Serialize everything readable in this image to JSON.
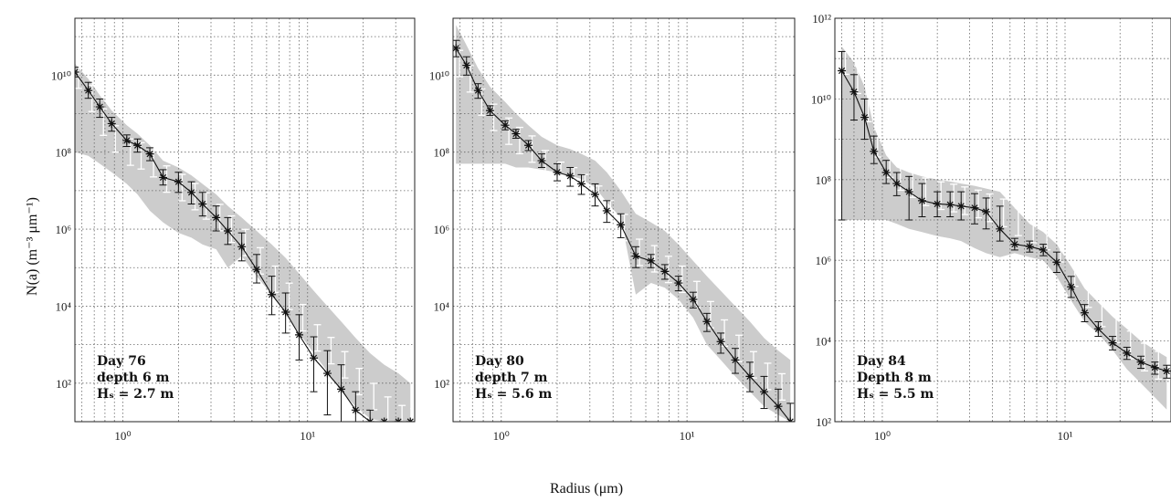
{
  "figure": {
    "ylabel": "N(a) (m⁻³ μm⁻¹)",
    "xlabel": "Radius (μm)"
  },
  "chart_data": [
    {
      "type": "line",
      "scale": "log-log",
      "grid": true,
      "xlim": [
        0.55,
        38
      ],
      "ylim": [
        10,
        300000000000.0
      ],
      "xticks": [
        "10⁰",
        "10¹"
      ],
      "yticks": [
        "10²",
        "10⁴",
        "10⁶",
        "10⁸",
        "10¹⁰"
      ],
      "annotation": [
        "Day 76",
        "depth 6 m",
        "Hₛ = 2.7 m"
      ],
      "series": {
        "x": [
          0.55,
          0.65,
          0.75,
          0.87,
          1.05,
          1.2,
          1.4,
          1.65,
          2.0,
          2.35,
          2.7,
          3.2,
          3.7,
          4.4,
          5.3,
          6.4,
          7.6,
          9.0,
          10.8,
          12.8,
          15.2,
          18.2,
          21.8,
          26.0,
          31.0,
          36.0
        ],
        "y": [
          12000000000.0,
          4000000000.0,
          1500000000.0,
          550000000.0,
          200000000.0,
          150000000.0,
          90000000.0,
          22000000.0,
          17000000.0,
          9000000.0,
          4500000.0,
          2000000.0,
          900000.0,
          350000.0,
          90000.0,
          20000.0,
          7000.0,
          1800.0,
          450.0,
          180.0,
          70,
          20,
          10,
          5,
          2.8,
          2
        ],
        "err_low": [
          9000000000.0,
          2500000000.0,
          800000000.0,
          350000000.0,
          140000000.0,
          100000000.0,
          60000000.0,
          14000000.0,
          9000000.0,
          4500000.0,
          2200000.0,
          900000.0,
          400000.0,
          150000.0,
          40000.0,
          6000.0,
          2000.0,
          400.0,
          60,
          15,
          1,
          5,
          3,
          2,
          1.8,
          1.5
        ],
        "err_high": [
          16000000000.0,
          6500000000.0,
          2400000000.0,
          800000000.0,
          280000000.0,
          220000000.0,
          130000000.0,
          35000000.0,
          30000000.0,
          17000000.0,
          9000000.0,
          4000000.0,
          2000000.0,
          800000.0,
          220000.0,
          60000.0,
          22000.0,
          6000.0,
          1600.0,
          700.0,
          300.0,
          60,
          20,
          10,
          6,
          4
        ],
        "secondary": [
          10000000000.0,
          2500000000.0,
          600000000.0,
          220000000.0,
          100000000.0,
          80000000.0,
          50000000.0,
          20000000.0,
          12000000.0,
          7000000.0,
          4000000.0,
          2000000.0,
          1000000.0,
          450000.0,
          150000.0,
          50000.0,
          18000.0,
          5000.0,
          1500.0,
          700,
          300,
          110,
          45,
          20,
          12,
          10
        ]
      },
      "band": {
        "lower": [
          100000000.0,
          80000000.0,
          50000000.0,
          30000000.0,
          15000000.0,
          8000000.0,
          3000000.0,
          1500000.0,
          800000.0,
          600000.0,
          400000.0,
          300000.0,
          100000.0,
          200000.0,
          60000.0,
          20000.0,
          7000.0,
          2000.0,
          600.0,
          200.0,
          60,
          25,
          12,
          8,
          5,
          2.5
        ],
        "upper": [
          20000000000.0,
          8000000000.0,
          3000000000.0,
          1200000000.0,
          500000000.0,
          300000000.0,
          150000000.0,
          60000000.0,
          40000000.0,
          25000000.0,
          15000000.0,
          8000000.0,
          4000000.0,
          2000000.0,
          900000.0,
          400000.0,
          180000.0,
          70000.0,
          25000.0,
          10000.0,
          4000.0,
          1500.0,
          600,
          300,
          180,
          100
        ]
      }
    },
    {
      "type": "line",
      "scale": "log-log",
      "grid": true,
      "xlim": [
        0.55,
        38
      ],
      "ylim": [
        10,
        300000000000.0
      ],
      "xticks": [
        "10⁰",
        "10¹"
      ],
      "yticks": [
        "10²",
        "10⁴",
        "10⁶",
        "10⁸",
        "10¹⁰"
      ],
      "annotation": [
        "Day 80",
        "depth 7 m",
        "Hₛ = 5.6 m"
      ],
      "series": {
        "x": [
          0.57,
          0.65,
          0.75,
          0.87,
          1.05,
          1.2,
          1.4,
          1.65,
          2.0,
          2.35,
          2.7,
          3.2,
          3.7,
          4.4,
          5.3,
          6.4,
          7.6,
          9.0,
          10.8,
          12.8,
          15.2,
          18.2,
          21.8,
          26.0,
          31.0,
          36.0
        ],
        "y": [
          50000000000.0,
          18000000000.0,
          4000000000.0,
          1200000000.0,
          500000000.0,
          300000000.0,
          150000000.0,
          60000000.0,
          30000000.0,
          24000000.0,
          15000000.0,
          8000000.0,
          3000000.0,
          1300000.0,
          200000.0,
          150000.0,
          80000.0,
          40000.0,
          15000.0,
          4000.0,
          1200.0,
          400,
          150,
          60,
          25,
          10
        ],
        "err_low": [
          30000000000.0,
          10000000000.0,
          2500000000.0,
          900000000.0,
          380000000.0,
          230000000.0,
          110000000.0,
          40000000.0,
          18000000.0,
          13000000.0,
          8000000.0,
          4000000.0,
          1500000.0,
          600000.0,
          100000.0,
          100000.0,
          50000.0,
          25000.0,
          9000.0,
          2200.0,
          600.0,
          180,
          60,
          22,
          8,
          3
        ],
        "err_high": [
          80000000000.0,
          30000000000.0,
          6000000000.0,
          1600000000.0,
          650000000.0,
          390000000.0,
          200000000.0,
          90000000.0,
          50000000.0,
          40000000.0,
          26000000.0,
          15000000.0,
          5500000.0,
          2500000.0,
          350000.0,
          220000.0,
          120000.0,
          60000.0,
          23000.0,
          6500.0,
          2000.0,
          800,
          350,
          150,
          70,
          30
        ],
        "secondary": [
          20000000000.0,
          8000000000.0,
          2000000000.0,
          800000000.0,
          350000000.0,
          200000000.0,
          120000000.0,
          50000000.0,
          25000000.0,
          18000000.0,
          12000000.0,
          6000000.0,
          2500000.0,
          1100000.0,
          250000.0,
          170000.0,
          90000.0,
          50000.0,
          20000.0,
          6000.0,
          2000.0,
          800,
          300,
          150,
          80,
          40
        ]
      },
      "band": {
        "lower": [
          50000000.0,
          50000000.0,
          50000000.0,
          50000000.0,
          50000000.0,
          40000000.0,
          40000000.0,
          35000000.0,
          30000000.0,
          25000000.0,
          20000000.0,
          12000000.0,
          5000000.0,
          2000000.0,
          20000.0,
          40000.0,
          30000.0,
          15000.0,
          5000.0,
          1000.0,
          400,
          150,
          60,
          25,
          15,
          10
        ],
        "upper": [
          200000000000.0,
          60000000000.0,
          15000000000.0,
          5000000000.0,
          2000000000.0,
          1000000000.0,
          500000000.0,
          250000000.0,
          150000000.0,
          120000000.0,
          90000000.0,
          60000000.0,
          30000000.0,
          10000000.0,
          2500000.0,
          1500000.0,
          900000.0,
          400000.0,
          150000.0,
          60000.0,
          25000.0,
          10000.0,
          4000.0,
          1500.0,
          700,
          400
        ]
      }
    },
    {
      "type": "line",
      "scale": "log-log",
      "grid": true,
      "xlim": [
        0.55,
        38
      ],
      "ylim": [
        100,
        1000000000000.0
      ],
      "xticks": [
        "10⁰",
        "10¹"
      ],
      "yticks": [
        "10²",
        "10⁴",
        "10⁶",
        "10⁸",
        "10¹⁰",
        "10¹²"
      ],
      "annotation": [
        "Day 84",
        "Depth 8 m",
        "Hₛ = 5.5 m"
      ],
      "series": {
        "x": [
          0.6,
          0.7,
          0.8,
          0.9,
          1.05,
          1.2,
          1.4,
          1.65,
          2.0,
          2.35,
          2.7,
          3.2,
          3.7,
          4.4,
          5.3,
          6.4,
          7.6,
          9.0,
          10.8,
          12.8,
          15.2,
          18.2,
          21.8,
          26.0,
          31.0,
          36.0
        ],
        "y": [
          50000000000.0,
          15000000000.0,
          3500000000.0,
          500000000.0,
          150000000.0,
          80000000.0,
          50000000.0,
          30000000.0,
          25000000.0,
          24000000.0,
          22000000.0,
          20000000.0,
          16000000.0,
          6000000.0,
          2500000.0,
          2200000.0,
          1800000.0,
          900000.0,
          220000.0,
          50000.0,
          20000.0,
          9000.0,
          5000.0,
          3000.0,
          2200.0,
          1800.0
        ],
        "err_low": [
          10000000.0,
          3000000000.0,
          1000000000.0,
          250000000.0,
          80000000.0,
          40000000.0,
          10000000.0,
          12000000.0,
          12000000.0,
          12000000.0,
          10000000.0,
          8000000.0,
          6000000.0,
          3000000.0,
          1800000.0,
          1600000.0,
          1300000.0,
          500000.0,
          120000.0,
          30000.0,
          13000.0,
          6000.0,
          3500.0,
          2100.0,
          1500.0,
          1200.0
        ],
        "err_high": [
          150000000000.0,
          40000000000.0,
          10000000000.0,
          1200000000.0,
          300000000.0,
          150000000.0,
          120000000.0,
          80000000.0,
          50000000.0,
          50000000.0,
          50000000.0,
          45000000.0,
          35000000.0,
          22000000.0,
          3500000.0,
          3000000.0,
          2500000.0,
          1600000.0,
          400000.0,
          80000.0,
          30000.0,
          13000.0,
          7000.0,
          4200.0,
          3000.0,
          2500.0
        ],
        "secondary": [
          90000000000.0,
          30000000000.0,
          6000000000.0,
          800000000.0,
          250000000.0,
          120000000.0,
          80000000.0,
          50000000.0,
          40000000.0,
          35000000.0,
          30000000.0,
          25000000.0,
          20000000.0,
          15000000.0,
          9000000.0,
          6000000.0,
          4000000.0,
          2000000.0,
          500000.0,
          150000.0,
          50000.0,
          20000.0,
          8000.0,
          4000.0,
          2500.0,
          2000.0
        ]
      },
      "band": {
        "lower": [
          10000000.0,
          10000000.0,
          10000000.0,
          10000000.0,
          10000000.0,
          8000000.0,
          6000000.0,
          5000000.0,
          4000000.0,
          3500000.0,
          3000000.0,
          2000000.0,
          1500000.0,
          1200000.0,
          1500000.0,
          1200000.0,
          1000000.0,
          400000.0,
          100000.0,
          30000.0,
          15000.0,
          6000.0,
          2000.0,
          900,
          400,
          200
        ],
        "upper": [
          200000000000.0,
          80000000000.0,
          20000000000.0,
          2000000000.0,
          400000000.0,
          200000000.0,
          150000000.0,
          120000000.0,
          100000000.0,
          90000000.0,
          80000000.0,
          70000000.0,
          60000000.0,
          50000000.0,
          20000000.0,
          8000000.0,
          5000000.0,
          2500000.0,
          700000.0,
          200000.0,
          90000.0,
          40000.0,
          20000.0,
          10000.0,
          6000.0,
          4000.0
        ]
      }
    }
  ]
}
